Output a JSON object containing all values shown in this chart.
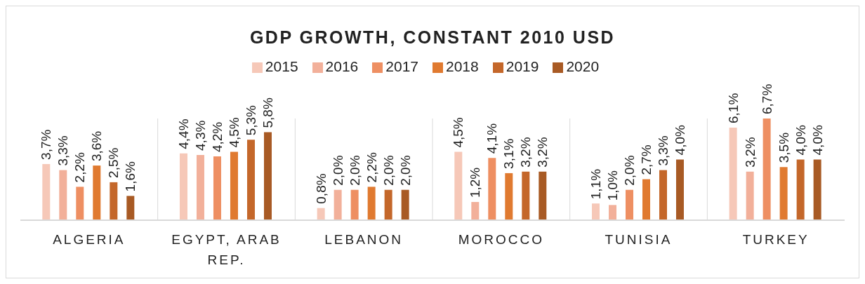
{
  "chart_data": {
    "type": "bar",
    "title": "GDP GROWTH, CONSTANT 2010 USD",
    "categories": [
      "ALGERIA",
      "EGYPT, ARAB REP.",
      "LEBANON",
      "MOROCCO",
      "TUNISIA",
      "TURKEY"
    ],
    "series": [
      {
        "name": "2015",
        "color": "#f6c8b8",
        "values": [
          3.7,
          4.4,
          0.8,
          4.5,
          1.1,
          6.1
        ],
        "value_labels": [
          "3,7%",
          "4,4%",
          "0,8%",
          "4,5%",
          "1,1%",
          "6,1%"
        ]
      },
      {
        "name": "2016",
        "color": "#f2b09a",
        "values": [
          3.3,
          4.3,
          2.0,
          1.2,
          1.0,
          3.2
        ],
        "value_labels": [
          "3,3%",
          "4,3%",
          "2,0%",
          "1,2%",
          "1,0%",
          "3,2%"
        ]
      },
      {
        "name": "2017",
        "color": "#ee8f62",
        "values": [
          2.2,
          4.2,
          2.0,
          4.1,
          2.0,
          6.7
        ],
        "value_labels": [
          "2,2%",
          "4,2%",
          "2,0%",
          "4,1%",
          "2,0%",
          "6,7%"
        ]
      },
      {
        "name": "2018",
        "color": "#e07a30",
        "values": [
          3.6,
          4.5,
          2.2,
          3.1,
          2.7,
          3.5
        ],
        "value_labels": [
          "3,6%",
          "4,5%",
          "2,2%",
          "3,1%",
          "2,7%",
          "3,5%"
        ]
      },
      {
        "name": "2019",
        "color": "#c4672a",
        "values": [
          2.5,
          5.3,
          2.0,
          3.2,
          3.3,
          4.0
        ],
        "value_labels": [
          "2,5%",
          "5,3%",
          "2,0%",
          "3,2%",
          "3,3%",
          "4,0%"
        ]
      },
      {
        "name": "2020",
        "color": "#a85a24",
        "values": [
          1.6,
          5.8,
          2.0,
          3.2,
          4.0,
          4.0
        ],
        "value_labels": [
          "1,6%",
          "5,8%",
          "2,0%",
          "3,2%",
          "4,0%",
          "4,0%"
        ]
      }
    ],
    "legend": "top",
    "grid": "x"
  }
}
